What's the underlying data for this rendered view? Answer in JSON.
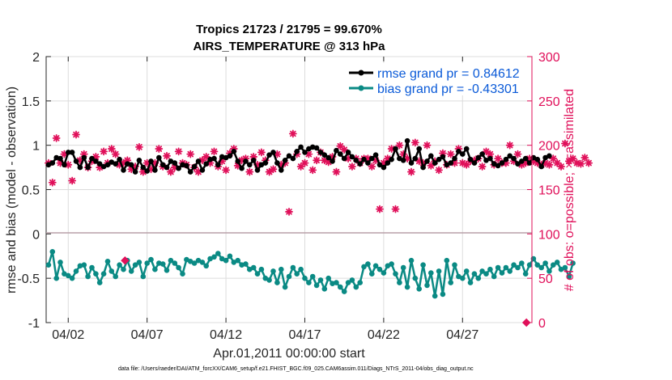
{
  "chart_data": {
    "type": "line",
    "title": [
      "Tropics 21723 / 21795 = 99.670%",
      "AIRS_TEMPERATURE @ 313 hPa"
    ],
    "xlabel": "Apr.01,2011 00:00:00 start",
    "ylabel": "rmse and bias (model - observation)",
    "y2label": "# of obs: o=possible; ×=assimilated",
    "xlim": [
      0.6,
      31.4
    ],
    "ylim": [
      -1,
      2
    ],
    "y2lim": [
      0,
      300
    ],
    "xticks": [
      {
        "value": 2,
        "label": "04/02"
      },
      {
        "value": 7,
        "label": "04/07"
      },
      {
        "value": 12,
        "label": "04/12"
      },
      {
        "value": 17,
        "label": "04/17"
      },
      {
        "value": 22,
        "label": "04/22"
      },
      {
        "value": 27,
        "label": "04/27"
      }
    ],
    "yticks": [
      {
        "value": -1,
        "label": "-1"
      },
      {
        "value": -0.5,
        "label": "-0.5"
      },
      {
        "value": 0,
        "label": "0"
      },
      {
        "value": 0.5,
        "label": "0.5"
      },
      {
        "value": 1,
        "label": "1"
      },
      {
        "value": 1.5,
        "label": "1.5"
      },
      {
        "value": 2,
        "label": "2"
      }
    ],
    "y2ticks": [
      {
        "value": 0,
        "label": "0"
      },
      {
        "value": 50,
        "label": "50"
      },
      {
        "value": 100,
        "label": "100"
      },
      {
        "value": 150,
        "label": "150"
      },
      {
        "value": 200,
        "label": "200"
      },
      {
        "value": 250,
        "label": "250"
      },
      {
        "value": 300,
        "label": "300"
      }
    ],
    "legend_position": "top-right",
    "series": [
      {
        "name": "rmse grand pr = 0.84612",
        "axis": "left",
        "color": "#000000",
        "marker": "circle",
        "x_start": 0.75,
        "x_step": 0.25,
        "values": [
          0.78,
          0.8,
          0.86,
          0.85,
          0.78,
          0.92,
          0.92,
          0.82,
          0.75,
          0.86,
          0.75,
          0.85,
          0.82,
          0.79,
          0.76,
          0.78,
          0.81,
          0.79,
          0.84,
          0.72,
          0.79,
          0.78,
          0.7,
          0.83,
          0.75,
          0.71,
          0.82,
          0.72,
          0.86,
          0.78,
          0.75,
          0.82,
          0.8,
          0.74,
          0.78,
          0.77,
          0.7,
          0.76,
          0.82,
          0.72,
          0.79,
          0.84,
          0.85,
          0.78,
          0.87,
          0.86,
          0.88,
          0.93,
          0.82,
          0.74,
          0.82,
          0.78,
          0.83,
          0.72,
          0.78,
          0.8,
          0.89,
          0.92,
          0.8,
          0.72,
          0.83,
          0.88,
          0.85,
          0.93,
          0.98,
          0.92,
          0.96,
          0.98,
          0.97,
          0.92,
          0.89,
          0.86,
          0.82,
          0.94,
          0.9,
          0.85,
          0.92,
          0.87,
          0.83,
          0.79,
          0.84,
          0.8,
          0.85,
          0.89,
          0.78,
          0.75,
          0.8,
          0.84,
          0.96,
          0.85,
          0.83,
          1.05,
          0.8,
          0.85,
          0.96,
          0.75,
          0.82,
          0.88,
          0.8,
          0.84,
          0.87,
          0.78,
          0.8,
          0.85,
          0.93,
          0.9,
          0.96,
          0.84,
          0.8,
          0.86,
          0.9,
          0.83,
          0.85,
          0.79,
          0.77,
          0.8,
          0.84,
          0.88,
          0.85,
          0.79,
          0.82,
          0.85,
          0.8,
          0.86,
          0.84,
          0.76,
          0.86,
          0.88
        ]
      },
      {
        "name": "bias grand pr = -0.43301",
        "axis": "left",
        "color": "#0a8a84",
        "marker": "circle",
        "x_start": 0.75,
        "x_step": 0.25,
        "values": [
          -0.35,
          -0.2,
          -0.5,
          -0.32,
          -0.45,
          -0.47,
          -0.5,
          -0.42,
          -0.36,
          -0.35,
          -0.48,
          -0.38,
          -0.45,
          -0.55,
          -0.45,
          -0.31,
          -0.42,
          -0.48,
          -0.35,
          -0.4,
          -0.3,
          -0.42,
          -0.35,
          -0.32,
          -0.48,
          -0.33,
          -0.29,
          -0.4,
          -0.33,
          -0.34,
          -0.41,
          -0.3,
          -0.33,
          -0.38,
          -0.45,
          -0.29,
          -0.31,
          -0.33,
          -0.3,
          -0.32,
          -0.36,
          -0.28,
          -0.26,
          -0.22,
          -0.28,
          -0.3,
          -0.25,
          -0.32,
          -0.3,
          -0.35,
          -0.34,
          -0.4,
          -0.38,
          -0.45,
          -0.4,
          -0.5,
          -0.52,
          -0.42,
          -0.55,
          -0.4,
          -0.6,
          -0.48,
          -0.38,
          -0.45,
          -0.4,
          -0.5,
          -0.55,
          -0.48,
          -0.58,
          -0.52,
          -0.62,
          -0.5,
          -0.56,
          -0.55,
          -0.6,
          -0.65,
          -0.55,
          -0.52,
          -0.6,
          -0.55,
          -0.37,
          -0.34,
          -0.45,
          -0.36,
          -0.4,
          -0.44,
          -0.36,
          -0.34,
          -0.45,
          -0.55,
          -0.38,
          -0.6,
          -0.3,
          -0.5,
          -0.62,
          -0.35,
          -0.58,
          -0.44,
          -0.7,
          -0.42,
          -0.68,
          -0.3,
          -0.55,
          -0.35,
          -0.48,
          -0.5,
          -0.42,
          -0.55,
          -0.45,
          -0.5,
          -0.42,
          -0.45,
          -0.4,
          -0.48,
          -0.38,
          -0.44,
          -0.38,
          -0.42,
          -0.35,
          -0.38,
          -0.33,
          -0.45,
          -0.35,
          -0.28,
          -0.35,
          -0.38,
          -0.33,
          -0.42,
          -0.35,
          -0.32,
          -0.4,
          -0.38,
          -0.48,
          -0.33
        ]
      },
      {
        "name": "# of obs assimilated",
        "axis": "right",
        "color": "#e0105a",
        "marker": "asterisk",
        "x_start": 0.75,
        "x_step": 0.25,
        "values": [
          180,
          158,
          208,
          180,
          190,
          178,
          160,
          212,
          183,
          190,
          175,
          182,
          187,
          175,
          193,
          180,
          196,
          190,
          178,
          180,
          183,
          173,
          176,
          198,
          170,
          180,
          173,
          180,
          196,
          176,
          188,
          170,
          175,
          193,
          180,
          178,
          190,
          175,
          170,
          183,
          187,
          180,
          193,
          176,
          182,
          172,
          191,
          196,
          177,
          183,
          185,
          170,
          187,
          178,
          192,
          183,
          170,
          173,
          190,
          178,
          180,
          125,
          213,
          190,
          176,
          180,
          190,
          172,
          183,
          192,
          183,
          181,
          187,
          170,
          199,
          195,
          185,
          176,
          185,
          180,
          185,
          185,
          176,
          183,
          128,
          180,
          185,
          196,
          128,
          200,
          190,
          185,
          170,
          203,
          182,
          180,
          200,
          177,
          182,
          172,
          191,
          178,
          190,
          180,
          196,
          180,
          178,
          182,
          183,
          185,
          176,
          193,
          190,
          178,
          185,
          180,
          180,
          200,
          182,
          190,
          178,
          180,
          185,
          182,
          180,
          178,
          180,
          178,
          185,
          180,
          176,
          202,
          182,
          185,
          180,
          179,
          186,
          180
        ]
      }
    ],
    "points_possible": [
      {
        "x": 5.6,
        "y2": 70
      },
      {
        "x": 31.05,
        "y2": 0
      }
    ]
  },
  "footnote": "data file: /Users/raeder/DAI/ATM_forcXX/CAM6_setup/f.e21.FHIST_BGC.f09_025.CAM6assim.011/Diags_NTrS_2011-04/obs_diag_output.nc"
}
